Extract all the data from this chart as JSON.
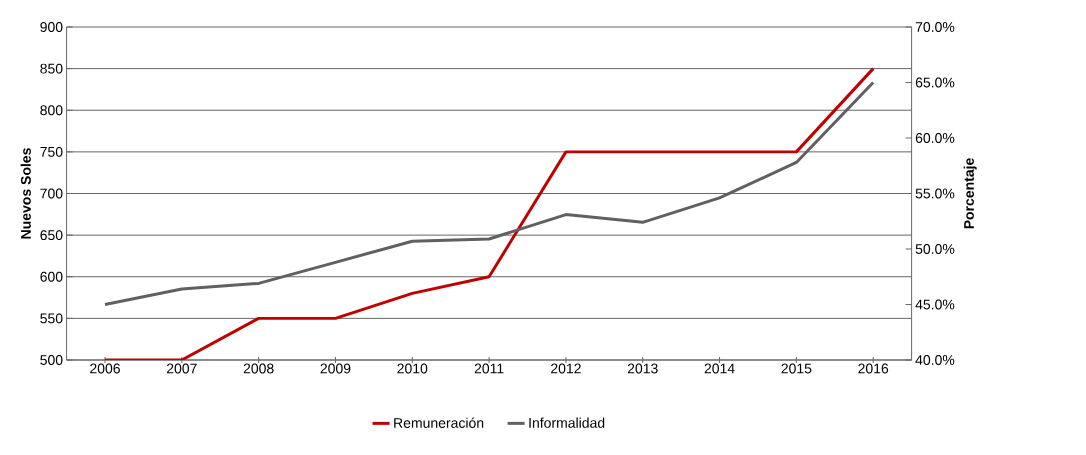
{
  "chart_data": {
    "type": "line",
    "categories": [
      "2006",
      "2007",
      "2008",
      "2009",
      "2010",
      "2011",
      "2012",
      "2013",
      "2014",
      "2015",
      "2016"
    ],
    "ylabel": "Nuevos Soles",
    "y2label": "Porcentaje",
    "ylim": [
      500,
      900
    ],
    "yticks": [
      500,
      550,
      600,
      650,
      700,
      750,
      800,
      850,
      900
    ],
    "y2lim": [
      40,
      70
    ],
    "y2ticks": [
      {
        "value": 40,
        "label": "40.0%"
      },
      {
        "value": 45,
        "label": "45.0%"
      },
      {
        "value": 50,
        "label": "50.0%"
      },
      {
        "value": 55,
        "label": "55.0%"
      },
      {
        "value": 60,
        "label": "60.0%"
      },
      {
        "value": 65,
        "label": "65.0%"
      },
      {
        "value": 70,
        "label": "70.0%"
      }
    ],
    "grid": "y",
    "legend": "bottom",
    "series": [
      {
        "name": "Remuneración",
        "color": "#c00000",
        "values": [
          500,
          500,
          550,
          550,
          580,
          600,
          750,
          750,
          750,
          750,
          850
        ]
      },
      {
        "name": "Informalidad",
        "color": "#606060",
        "axis": "y2",
        "values": [
          45.0,
          46.4,
          46.9,
          48.8,
          50.7,
          50.9,
          53.1,
          52.4,
          54.6,
          57.8,
          65.0
        ]
      }
    ]
  }
}
